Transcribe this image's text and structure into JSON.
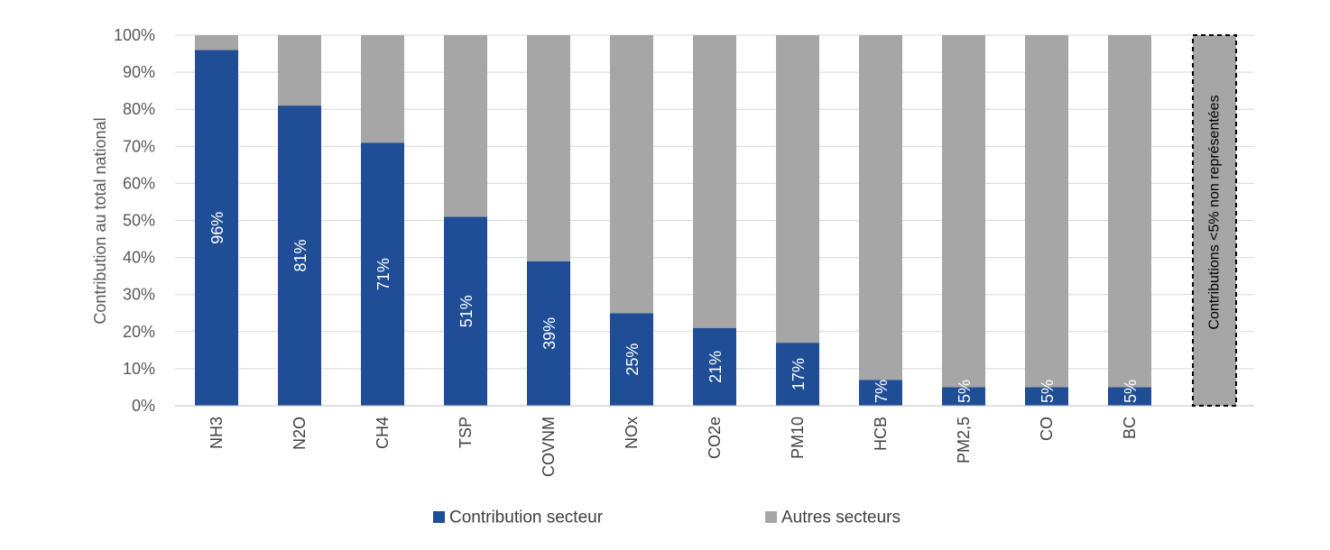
{
  "chart_data": {
    "type": "bar",
    "stacked": true,
    "percent_stacked": true,
    "categories": [
      "NH3",
      "N2O",
      "CH4",
      "TSP",
      "COVNM",
      "NOx",
      "CO2e",
      "PM10",
      "HCB",
      "PM2,5",
      "CO",
      "BC"
    ],
    "series": [
      {
        "name": "Contribution secteur",
        "color": "#1f4e96",
        "values": [
          96,
          81,
          71,
          51,
          39,
          25,
          21,
          17,
          7,
          5,
          5,
          5
        ],
        "labels": [
          "96%",
          "81%",
          "71%",
          "51%",
          "39%",
          "25%",
          "21%",
          "17%",
          "7%",
          "5%",
          "5%",
          "5%"
        ]
      },
      {
        "name": "Autres secteurs",
        "color": "#a6a6a6",
        "values": [
          4,
          19,
          29,
          49,
          61,
          75,
          79,
          83,
          93,
          95,
          95,
          95
        ]
      }
    ],
    "extra_bar": {
      "label": "Contributions <5% non représentées",
      "value": 100,
      "color": "#a6a6a6",
      "border": "dashed"
    },
    "ylabel": "Contribution au total national",
    "ylim": [
      0,
      100
    ],
    "yticks": [
      "0%",
      "10%",
      "20%",
      "30%",
      "40%",
      "50%",
      "60%",
      "70%",
      "80%",
      "90%",
      "100%"
    ],
    "grid": true,
    "legend_position": "bottom"
  }
}
